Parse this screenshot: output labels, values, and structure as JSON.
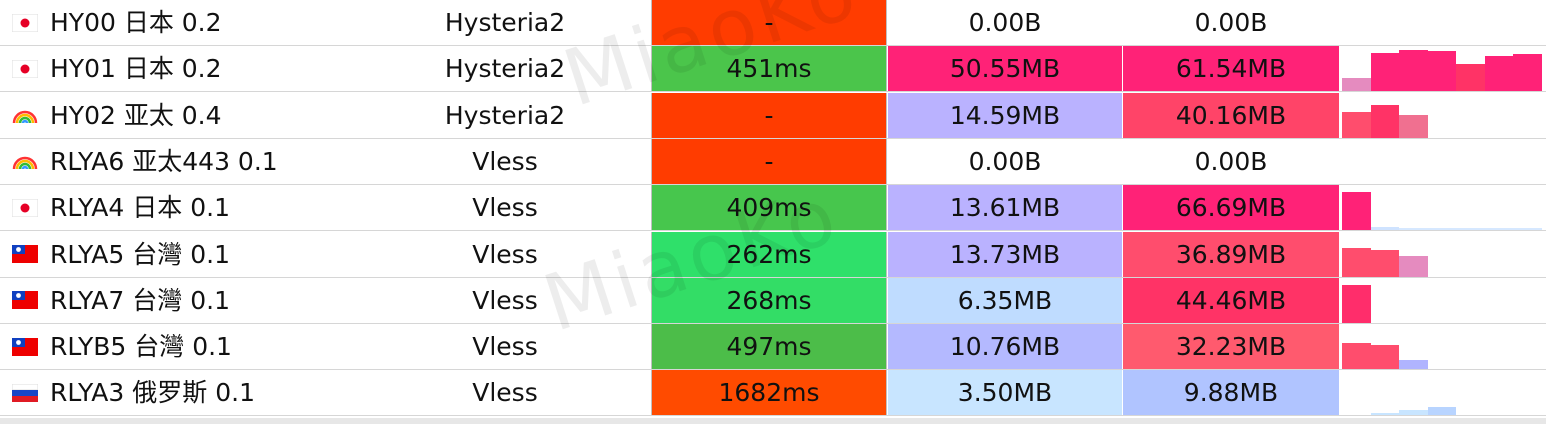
{
  "watermark": "MiaoKo",
  "rows": [
    {
      "flag": "jp",
      "name": "HY00 日本 0.2",
      "protocol": "Hysteria2",
      "latency": "-",
      "latency_color": "#FF3C00",
      "upload": "0.00B",
      "upload_color": "#FFFFFF",
      "download": "0.00B",
      "download_color": "#FFFFFF",
      "traffic_bars": []
    },
    {
      "flag": "jp",
      "name": "HY01 日本 0.2",
      "protocol": "Hysteria2",
      "latency": "451ms",
      "latency_color": "#4BC54B",
      "upload": "50.55MB",
      "upload_color": "#FF2277",
      "download": "61.54MB",
      "download_color": "#FF2277",
      "traffic_bars": [
        {
          "v": 0.32,
          "c": "#E58BBF"
        },
        {
          "v": 0.92,
          "c": "#FF2277"
        },
        {
          "v": 0.98,
          "c": "#FF2277"
        },
        {
          "v": 0.95,
          "c": "#FF2277"
        },
        {
          "v": 0.65,
          "c": "#FF3366"
        },
        {
          "v": 0.85,
          "c": "#FF2277"
        },
        {
          "v": 0.88,
          "c": "#FF2277"
        }
      ]
    },
    {
      "flag": "rainbow",
      "name": "HY02 亚太 0.4",
      "protocol": "Hysteria2",
      "latency": "-",
      "latency_color": "#FF3C00",
      "upload": "14.59MB",
      "upload_color": "#BAB2FF",
      "download": "40.16MB",
      "download_color": "#FF4468",
      "traffic_bars": [
        {
          "v": 0.62,
          "c": "#FF4D6D"
        },
        {
          "v": 0.78,
          "c": "#FF3366"
        },
        {
          "v": 0.55,
          "c": "#F07090"
        }
      ]
    },
    {
      "flag": "rainbow",
      "name": "RLYA6 亚太443 0.1",
      "protocol": "Vless",
      "latency": "-",
      "latency_color": "#FF3C00",
      "upload": "0.00B",
      "upload_color": "#FFFFFF",
      "download": "0.00B",
      "download_color": "#FFFFFF",
      "traffic_bars": []
    },
    {
      "flag": "jp",
      "name": "RLYA4 日本 0.1",
      "protocol": "Vless",
      "latency": "409ms",
      "latency_color": "#47C64D",
      "upload": "13.61MB",
      "upload_color": "#BAB2FF",
      "download": "66.69MB",
      "download_color": "#FF2277",
      "traffic_bars": [
        {
          "v": 0.92,
          "c": "#FF2277"
        },
        {
          "v": 0.08,
          "c": "#CFE3FF"
        },
        {
          "v": 0.05,
          "c": "#D6E8FF"
        },
        {
          "v": 0.05,
          "c": "#D6E8FF"
        },
        {
          "v": 0.05,
          "c": "#D6E8FF"
        },
        {
          "v": 0.06,
          "c": "#D6E8FF"
        },
        {
          "v": 0.06,
          "c": "#D6E8FF"
        }
      ]
    },
    {
      "flag": "tw",
      "name": "RLYA5 台灣 0.1",
      "protocol": "Vless",
      "latency": "262ms",
      "latency_color": "#2FE06A",
      "upload": "13.73MB",
      "upload_color": "#BAB2FF",
      "download": "36.89MB",
      "download_color": "#FF4D6D",
      "traffic_bars": [
        {
          "v": 0.68,
          "c": "#FF4D6D"
        },
        {
          "v": 0.62,
          "c": "#FF4D6D"
        },
        {
          "v": 0.48,
          "c": "#E58BBF"
        }
      ]
    },
    {
      "flag": "tw",
      "name": "RLYA7 台灣 0.1",
      "protocol": "Vless",
      "latency": "268ms",
      "latency_color": "#33DD66",
      "upload": "6.35MB",
      "upload_color": "#BFDCFF",
      "download": "44.46MB",
      "download_color": "#FF3366",
      "traffic_bars": [
        {
          "v": 0.9,
          "c": "#FF2D6B"
        }
      ]
    },
    {
      "flag": "tw",
      "name": "RLYB5 台灣 0.1",
      "protocol": "Vless",
      "latency": "497ms",
      "latency_color": "#4CBD49",
      "upload": "10.76MB",
      "upload_color": "#B4B9FF",
      "download": "32.23MB",
      "download_color": "#FF5A6E",
      "traffic_bars": [
        {
          "v": 0.62,
          "c": "#FF4D6D"
        },
        {
          "v": 0.58,
          "c": "#FF4D6D"
        },
        {
          "v": 0.22,
          "c": "#B0B4FF"
        }
      ]
    },
    {
      "flag": "ru",
      "name": "RLYA3 俄罗斯 0.1",
      "protocol": "Vless",
      "latency": "1682ms",
      "latency_color": "#FF4B00",
      "upload": "3.50MB",
      "upload_color": "#C8E5FF",
      "download": "9.88MB",
      "download_color": "#B0C4FF",
      "traffic_bars": [
        {
          "v": 0.0,
          "c": "#FFFFFF"
        },
        {
          "v": 0.05,
          "c": "#C8E5FF"
        },
        {
          "v": 0.12,
          "c": "#C8E5FF"
        },
        {
          "v": 0.2,
          "c": "#B8D4FF"
        }
      ]
    }
  ]
}
